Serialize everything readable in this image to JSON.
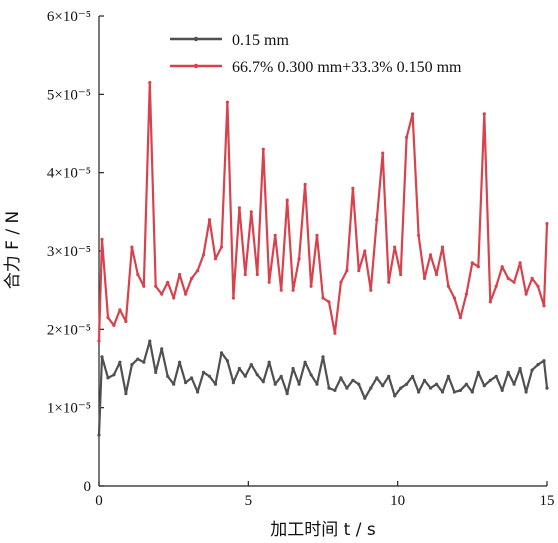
{
  "chart_data": {
    "type": "line",
    "title": "",
    "xlabel": "加工时间 t / s",
    "ylabel": "合力 F / N",
    "xlim": [
      0,
      15
    ],
    "ylim": [
      0,
      6e-05
    ],
    "x_ticks": [
      0,
      5,
      10,
      15
    ],
    "x_tick_labels": [
      "0",
      "5",
      "10",
      "15"
    ],
    "y_ticks": [
      0,
      1e-05,
      2e-05,
      3e-05,
      4e-05,
      5e-05,
      6e-05
    ],
    "y_tick_labels": [
      "0",
      "1×10⁻⁵",
      "2×10⁻⁵",
      "3×10⁻⁵",
      "4×10⁻⁵",
      "5×10⁻⁵",
      "6×10⁻⁵"
    ],
    "grid": false,
    "legend_position": "top",
    "x": [
      0,
      0.1,
      0.3,
      0.5,
      0.7,
      0.9,
      1.1,
      1.3,
      1.5,
      1.7,
      1.9,
      2.1,
      2.3,
      2.5,
      2.7,
      2.9,
      3.1,
      3.3,
      3.5,
      3.7,
      3.9,
      4.1,
      4.3,
      4.5,
      4.7,
      4.9,
      5.1,
      5.3,
      5.5,
      5.7,
      5.9,
      6.1,
      6.3,
      6.5,
      6.7,
      6.9,
      7.1,
      7.3,
      7.5,
      7.7,
      7.9,
      8.1,
      8.3,
      8.5,
      8.7,
      8.9,
      9.1,
      9.3,
      9.5,
      9.7,
      9.9,
      10.1,
      10.3,
      10.5,
      10.7,
      10.9,
      11.1,
      11.3,
      11.5,
      11.7,
      11.9,
      12.1,
      12.3,
      12.5,
      12.7,
      12.9,
      13.1,
      13.3,
      13.5,
      13.7,
      13.9,
      14.1,
      14.3,
      14.5,
      14.7,
      14.9,
      15.0
    ],
    "series": [
      {
        "name": "0.15 mm",
        "color": "#505050",
        "values": [
          6.5e-06,
          1.65e-05,
          1.38e-05,
          1.42e-05,
          1.58e-05,
          1.18e-05,
          1.55e-05,
          1.62e-05,
          1.58e-05,
          1.85e-05,
          1.45e-05,
          1.75e-05,
          1.4e-05,
          1.3e-05,
          1.58e-05,
          1.32e-05,
          1.38e-05,
          1.2e-05,
          1.45e-05,
          1.4e-05,
          1.3e-05,
          1.7e-05,
          1.6e-05,
          1.32e-05,
          1.5e-05,
          1.4e-05,
          1.55e-05,
          1.42e-05,
          1.33e-05,
          1.58e-05,
          1.3e-05,
          1.4e-05,
          1.18e-05,
          1.5e-05,
          1.3e-05,
          1.58e-05,
          1.42e-05,
          1.3e-05,
          1.65e-05,
          1.25e-05,
          1.22e-05,
          1.38e-05,
          1.25e-05,
          1.35e-05,
          1.3e-05,
          1.12e-05,
          1.25e-05,
          1.38e-05,
          1.28e-05,
          1.4e-05,
          1.15e-05,
          1.25e-05,
          1.3e-05,
          1.4e-05,
          1.2e-05,
          1.35e-05,
          1.25e-05,
          1.3e-05,
          1.2e-05,
          1.4e-05,
          1.2e-05,
          1.22e-05,
          1.3e-05,
          1.2e-05,
          1.45e-05,
          1.28e-05,
          1.35e-05,
          1.4e-05,
          1.22e-05,
          1.45e-05,
          1.3e-05,
          1.5e-05,
          1.2e-05,
          1.48e-05,
          1.55e-05,
          1.6e-05,
          1.25e-05
        ]
      },
      {
        "name": "66.7% 0.300 mm+33.3% 0.150 mm",
        "color": "#d9424c",
        "values": [
          1.85e-05,
          3.15e-05,
          2.15e-05,
          2.05e-05,
          2.25e-05,
          2.1e-05,
          3.05e-05,
          2.7e-05,
          2.55e-05,
          5.15e-05,
          2.55e-05,
          2.45e-05,
          2.6e-05,
          2.4e-05,
          2.7e-05,
          2.45e-05,
          2.65e-05,
          2.75e-05,
          2.95e-05,
          3.4e-05,
          2.9e-05,
          3.05e-05,
          4.9e-05,
          2.4e-05,
          3.55e-05,
          2.7e-05,
          3.5e-05,
          2.7e-05,
          4.3e-05,
          2.6e-05,
          3.2e-05,
          2.5e-05,
          3.65e-05,
          2.5e-05,
          2.9e-05,
          3.85e-05,
          2.55e-05,
          3.2e-05,
          2.4e-05,
          2.35e-05,
          1.95e-05,
          2.6e-05,
          2.75e-05,
          3.8e-05,
          2.75e-05,
          3e-05,
          2.5e-05,
          3.4e-05,
          4.25e-05,
          2.6e-05,
          3.05e-05,
          2.7e-05,
          4.45e-05,
          4.75e-05,
          3.2e-05,
          2.65e-05,
          2.95e-05,
          2.7e-05,
          3.05e-05,
          2.55e-05,
          2.4e-05,
          2.15e-05,
          2.45e-05,
          2.85e-05,
          2.8e-05,
          4.75e-05,
          2.35e-05,
          2.55e-05,
          2.8e-05,
          2.65e-05,
          2.6e-05,
          2.85e-05,
          2.45e-05,
          2.65e-05,
          2.55e-05,
          2.3e-05,
          3.35e-05
        ]
      }
    ]
  }
}
